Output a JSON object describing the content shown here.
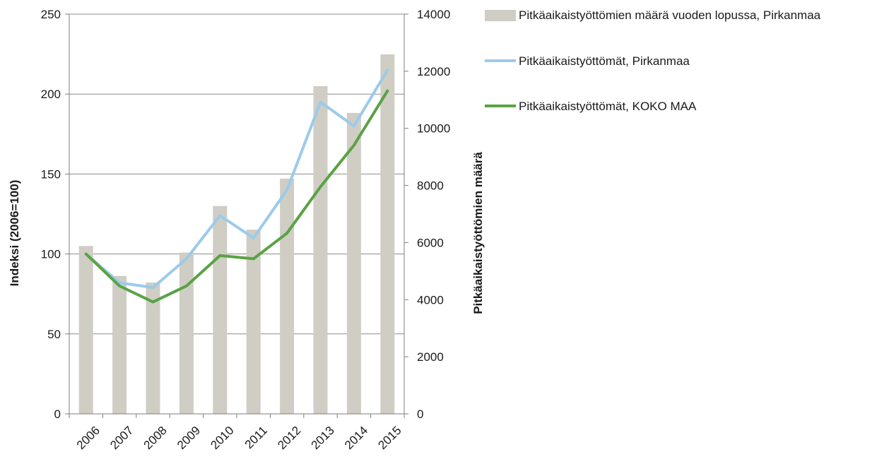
{
  "chart_data": {
    "type": "bar+line",
    "categories": [
      "2006",
      "2007",
      "2008",
      "2009",
      "2010",
      "2011",
      "2012",
      "2013",
      "2014",
      "2015"
    ],
    "bar_series": {
      "name": "Pitkäaikaistyöttömien määrä vuoden lopussa, Pirkanmaa",
      "axis": "right",
      "color": "#cfcdc4",
      "values": [
        5880,
        4830,
        4600,
        5650,
        7280,
        6450,
        8240,
        11480,
        10540,
        12590
      ]
    },
    "line_series": [
      {
        "name": "Pitkäaikaistyöttömät, Pirkanmaa",
        "axis": "left",
        "color": "#9ccbea",
        "values": [
          100,
          82,
          79,
          97,
          124,
          110,
          140,
          195,
          180,
          215
        ]
      },
      {
        "name": "Pitkäaikaistyöttömät, KOKO MAA",
        "axis": "left",
        "color": "#5aa244",
        "values": [
          100,
          80,
          70,
          80,
          99,
          97,
          113,
          142,
          168,
          202
        ]
      }
    ],
    "y_left": {
      "label": "Indeksi (2006=100)",
      "lim": [
        0,
        250
      ],
      "ticks": [
        "0",
        "50",
        "100",
        "150",
        "200",
        "250"
      ]
    },
    "y_right": {
      "label": "Pitkäaikaistyöttömien määrä",
      "lim": [
        0,
        14000
      ],
      "ticks": [
        "0",
        "2000",
        "4000",
        "6000",
        "8000",
        "10000",
        "12000",
        "14000"
      ]
    },
    "grid": true,
    "legend_position": "top-right",
    "title": "",
    "xlabel": ""
  }
}
